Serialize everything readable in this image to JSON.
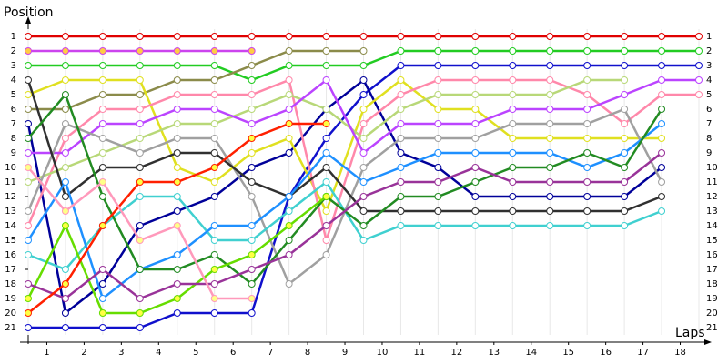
{
  "chart_data": {
    "type": "line",
    "y_label": "Position",
    "x_label": "Laps",
    "x": [
      0,
      1,
      2,
      3,
      4,
      5,
      6,
      7,
      8,
      9,
      10,
      11,
      12,
      13,
      14,
      15,
      16,
      17,
      18
    ],
    "xlim": [
      0,
      18
    ],
    "xticks": [
      {
        "value": 0.5,
        "label": "1"
      },
      {
        "value": 1.5,
        "label": "2"
      },
      {
        "value": 2.5,
        "label": "3"
      },
      {
        "value": 3.5,
        "label": "4"
      },
      {
        "value": 4.5,
        "label": "5"
      },
      {
        "value": 5.5,
        "label": "6"
      },
      {
        "value": 6.5,
        "label": "7"
      },
      {
        "value": 7.5,
        "label": "8"
      },
      {
        "value": 8.5,
        "label": "9"
      },
      {
        "value": 9.5,
        "label": "10"
      },
      {
        "value": 10.5,
        "label": "11"
      },
      {
        "value": 11.5,
        "label": "12"
      },
      {
        "value": 12.5,
        "label": "13"
      },
      {
        "value": 13.5,
        "label": "14"
      },
      {
        "value": 14.5,
        "label": "15"
      },
      {
        "value": 15.5,
        "label": "16"
      },
      {
        "value": 16.5,
        "label": "17"
      },
      {
        "value": 17.5,
        "label": "18"
      }
    ],
    "ylim": [
      1,
      21
    ],
    "y_inverted": true,
    "yticks": [
      1,
      2,
      3,
      4,
      5,
      6,
      7,
      8,
      9,
      10,
      11,
      12,
      13,
      14,
      15,
      16,
      17,
      18,
      19,
      20,
      21
    ],
    "y2ticks": [
      1,
      2,
      3,
      4,
      5,
      6,
      7,
      8,
      9,
      10,
      11,
      12,
      13,
      14,
      15,
      16,
      17,
      18,
      19,
      20,
      21
    ],
    "grid": true,
    "series": [
      {
        "color": "#e00000",
        "marker_fill": "#ffffff",
        "values": [
          1,
          1,
          1,
          1,
          1,
          1,
          1,
          1,
          1,
          1,
          1,
          1,
          1,
          1,
          1,
          1,
          1,
          1,
          1
        ]
      },
      {
        "color": "#22cc22",
        "marker_fill": "#ffffff",
        "values": [
          3,
          3,
          3,
          3,
          3,
          3,
          4,
          3,
          3,
          3,
          2,
          2,
          2,
          2,
          2,
          2,
          2,
          2,
          2
        ]
      },
      {
        "color": "#cc44ee",
        "marker_fill": "#ffcc44",
        "values": [
          2,
          2,
          2,
          2,
          2,
          2,
          2,
          null,
          null,
          null,
          null,
          null,
          null,
          null,
          null,
          null,
          null,
          null,
          null
        ]
      },
      {
        "color": "#8b8b4a",
        "marker_fill": "#ffffff",
        "values": [
          6,
          6,
          5,
          5,
          4,
          4,
          3,
          2,
          2,
          2,
          null,
          null,
          null,
          null,
          null,
          null,
          null,
          null,
          null
        ]
      },
      {
        "color": "#1010cc",
        "marker_fill": "#ffffff",
        "values": [
          21,
          21,
          21,
          21,
          20,
          20,
          20,
          12,
          8,
          5,
          3,
          3,
          3,
          3,
          3,
          3,
          3,
          3,
          3
        ]
      },
      {
        "color": "#000099",
        "marker_fill": "#ffffff",
        "values": [
          7,
          20,
          18,
          14,
          13,
          12,
          10,
          9,
          6,
          4,
          9,
          10,
          12,
          12,
          12,
          12,
          12,
          10,
          null
        ]
      },
      {
        "color": "#e0e020",
        "marker_fill": "#ffffff",
        "values": [
          5,
          4,
          4,
          4,
          10,
          11,
          9,
          8,
          13,
          6,
          4,
          6,
          6,
          8,
          8,
          8,
          8,
          8,
          null
        ]
      },
      {
        "color": "#ff88aa",
        "marker_fill": "#ffffff",
        "values": [
          14,
          8,
          6,
          6,
          5,
          5,
          5,
          4,
          15,
          7,
          5,
          4,
          4,
          4,
          4,
          5,
          7,
          5,
          5
        ]
      },
      {
        "color": "#b8d878",
        "marker_fill": "#ffffff",
        "values": [
          11,
          10,
          9,
          8,
          7,
          7,
          6,
          5,
          6,
          8,
          6,
          5,
          5,
          5,
          5,
          4,
          4,
          null,
          null
        ]
      },
      {
        "color": "#bb44ff",
        "marker_fill": "#ffffff",
        "values": [
          9,
          9,
          7,
          7,
          6,
          6,
          7,
          6,
          4,
          9,
          7,
          7,
          7,
          6,
          6,
          6,
          5,
          4,
          4
        ]
      },
      {
        "color": "#a0a0a0",
        "marker_fill": "#ffffff",
        "values": [
          13,
          7,
          8,
          9,
          8,
          8,
          12,
          18,
          16,
          10,
          8,
          8,
          8,
          7,
          7,
          7,
          6,
          11,
          null
        ]
      },
      {
        "color": "#303030",
        "marker_fill": "#ffffff",
        "values": [
          4,
          12,
          10,
          10,
          9,
          9,
          11,
          12,
          10,
          13,
          13,
          13,
          13,
          13,
          13,
          13,
          13,
          12,
          null
        ]
      },
      {
        "color": "#40d0d0",
        "marker_fill": "#ffffff",
        "values": [
          16,
          17,
          14,
          12,
          12,
          15,
          15,
          13,
          11,
          15,
          14,
          14,
          14,
          14,
          14,
          14,
          14,
          13,
          null
        ]
      },
      {
        "color": "#1e90ff",
        "marker_fill": "#ffffff",
        "values": [
          15,
          11,
          19,
          17,
          16,
          14,
          14,
          12,
          9,
          11,
          10,
          9,
          9,
          9,
          9,
          10,
          9,
          7,
          null
        ]
      },
      {
        "color": "#228b22",
        "marker_fill": "#ffffff",
        "values": [
          8,
          5,
          12,
          17,
          17,
          16,
          18,
          15,
          12,
          14,
          12,
          12,
          11,
          10,
          10,
          9,
          10,
          6,
          null
        ]
      },
      {
        "color": "#66dd00",
        "marker_fill": "#ffff44",
        "values": [
          19,
          14,
          20,
          20,
          19,
          17,
          16,
          14,
          12,
          null,
          null,
          null,
          null,
          null,
          null,
          null,
          null,
          null,
          null
        ]
      },
      {
        "color": "#993399",
        "marker_fill": "#ffffff",
        "values": [
          18,
          19,
          17,
          19,
          18,
          18,
          17,
          16,
          14,
          12,
          11,
          11,
          10,
          11,
          11,
          11,
          11,
          9,
          null
        ]
      },
      {
        "color": "#ff2000",
        "marker_fill": "#ffff44",
        "values": [
          20,
          18,
          14,
          11,
          11,
          10,
          8,
          7,
          7,
          null,
          null,
          null,
          null,
          null,
          null,
          null,
          null,
          null,
          null
        ]
      },
      {
        "color": "#ff99bb",
        "marker_fill": "#ffff88",
        "values": [
          10,
          13,
          11,
          15,
          14,
          19,
          19,
          null,
          null,
          null,
          null,
          null,
          null,
          null,
          null,
          null,
          null,
          null,
          null
        ]
      }
    ]
  }
}
